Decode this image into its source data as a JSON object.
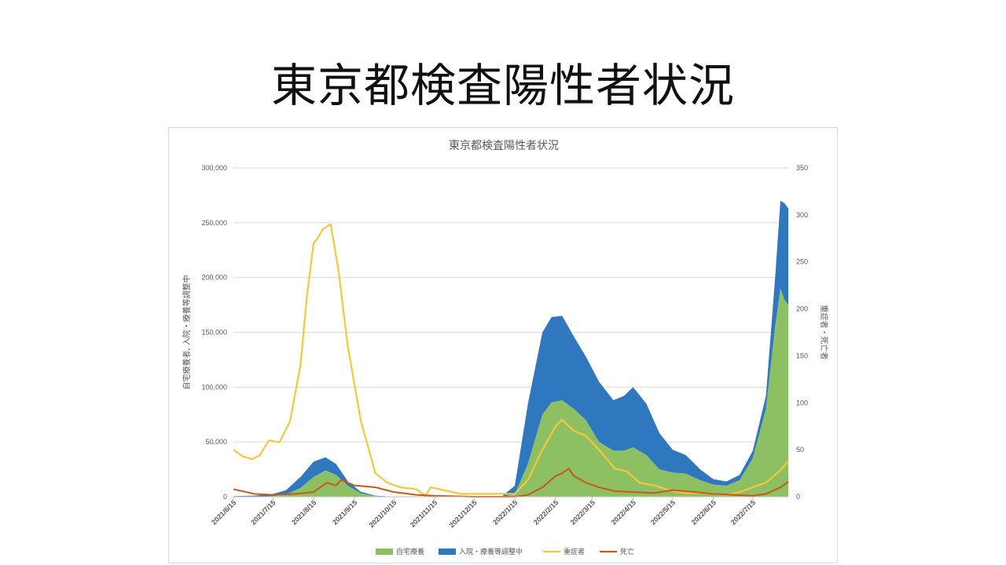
{
  "slide": {
    "title": "東京都検査陽性者状況"
  },
  "colors": {
    "home": "#8dc063",
    "hospital": "#2f78c0",
    "severe": "#f7c73a",
    "death": "#c9581a",
    "grid": "#d9d9d9",
    "text": "#595959"
  },
  "chart_data": {
    "type": "area",
    "title": "東京都検査陽性者状況",
    "ylabel_left": "自宅療養者, 入院・療養等調整中",
    "ylabel_right": "重症者・死亡者",
    "ylim_left": [
      0,
      300000
    ],
    "ylim_right": [
      0,
      350
    ],
    "yticks_left": [
      "0",
      "50,000",
      "100,000",
      "150,000",
      "200,000",
      "250,000",
      "300,000"
    ],
    "yticks_right": [
      "0",
      "50",
      "100",
      "150",
      "200",
      "250",
      "300",
      "350"
    ],
    "x_range": [
      "2021-06-15",
      "2022-08-11"
    ],
    "x_ticks": [
      "2021/6/15",
      "2021/7/15",
      "2021/8/15",
      "2021/9/15",
      "2021/10/15",
      "2021/11/15",
      "2021/12/15",
      "2022/1/15",
      "2022/2/15",
      "2022/3/15",
      "2022/4/15",
      "2022/5/15",
      "2022/6/15",
      "2022/7/15"
    ],
    "grid": true,
    "legend_position": "bottom",
    "series": [
      {
        "name": "自宅療養",
        "kind": "stacked-area",
        "axis": "left",
        "x": [
          "2021-06-15",
          "2021-07-01",
          "2021-07-15",
          "2021-07-25",
          "2021-08-05",
          "2021-08-15",
          "2021-08-24",
          "2021-09-01",
          "2021-09-10",
          "2021-09-20",
          "2021-10-01",
          "2021-10-15",
          "2021-11-15",
          "2021-12-15",
          "2022-01-05",
          "2022-01-15",
          "2022-01-25",
          "2022-02-05",
          "2022-02-12",
          "2022-02-20",
          "2022-03-01",
          "2022-03-10",
          "2022-03-20",
          "2022-03-31",
          "2022-04-08",
          "2022-04-15",
          "2022-04-25",
          "2022-05-05",
          "2022-05-15",
          "2022-05-25",
          "2022-06-05",
          "2022-06-15",
          "2022-06-25",
          "2022-07-05",
          "2022-07-15",
          "2022-07-25",
          "2022-08-01",
          "2022-08-05",
          "2022-08-08",
          "2022-08-11"
        ],
        "values": [
          0,
          0,
          500,
          2000,
          8000,
          18000,
          24000,
          20000,
          10000,
          3000,
          500,
          0,
          0,
          0,
          0,
          2000,
          30000,
          75000,
          86000,
          88000,
          80000,
          70000,
          50000,
          42000,
          42000,
          45000,
          38000,
          25000,
          22000,
          21000,
          15000,
          11000,
          10000,
          15000,
          35000,
          80000,
          155000,
          190000,
          180000,
          175000
        ]
      },
      {
        "name": "入院・療養等調整中",
        "kind": "stacked-area",
        "axis": "left",
        "x": [
          "2021-06-15",
          "2021-07-01",
          "2021-07-15",
          "2021-07-25",
          "2021-08-05",
          "2021-08-15",
          "2021-08-24",
          "2021-09-01",
          "2021-09-10",
          "2021-09-20",
          "2021-10-01",
          "2021-10-15",
          "2021-11-15",
          "2021-12-15",
          "2022-01-05",
          "2022-01-15",
          "2022-01-25",
          "2022-02-05",
          "2022-02-12",
          "2022-02-20",
          "2022-03-01",
          "2022-03-10",
          "2022-03-20",
          "2022-03-31",
          "2022-04-08",
          "2022-04-15",
          "2022-04-25",
          "2022-05-05",
          "2022-05-15",
          "2022-05-25",
          "2022-06-05",
          "2022-06-15",
          "2022-06-25",
          "2022-07-05",
          "2022-07-15",
          "2022-07-25",
          "2022-08-01",
          "2022-08-05",
          "2022-08-08",
          "2022-08-11"
        ],
        "values": [
          500,
          1000,
          2000,
          4000,
          10000,
          14000,
          12000,
          10000,
          4000,
          1500,
          500,
          0,
          0,
          0,
          200,
          8000,
          55000,
          75000,
          78000,
          77000,
          66000,
          58000,
          55000,
          46000,
          50000,
          55000,
          47000,
          33000,
          21000,
          17000,
          10000,
          5000,
          4000,
          5000,
          7000,
          12000,
          45000,
          80000,
          88000,
          88000
        ]
      },
      {
        "name": "重症者",
        "kind": "line",
        "axis": "right",
        "x": [
          "2021-06-15",
          "2021-06-22",
          "2021-06-29",
          "2021-07-05",
          "2021-07-12",
          "2021-07-20",
          "2021-07-28",
          "2021-08-05",
          "2021-08-10",
          "2021-08-15",
          "2021-08-18",
          "2021-08-22",
          "2021-08-28",
          "2021-09-03",
          "2021-09-10",
          "2021-09-20",
          "2021-10-01",
          "2021-10-10",
          "2021-10-20",
          "2021-11-01",
          "2021-11-08",
          "2021-11-12",
          "2021-11-22",
          "2021-12-05",
          "2021-12-20",
          "2022-01-05",
          "2022-01-15",
          "2022-01-25",
          "2022-02-05",
          "2022-02-15",
          "2022-02-20",
          "2022-03-01",
          "2022-03-10",
          "2022-03-20",
          "2022-04-01",
          "2022-04-10",
          "2022-04-20",
          "2022-05-01",
          "2022-05-15",
          "2022-05-25",
          "2022-06-05",
          "2022-06-15",
          "2022-06-25",
          "2022-07-05",
          "2022-07-15",
          "2022-07-25",
          "2022-08-05",
          "2022-08-11"
        ],
        "values": [
          50,
          43,
          40,
          44,
          60,
          58,
          80,
          140,
          215,
          270,
          275,
          285,
          290,
          240,
          160,
          80,
          25,
          15,
          10,
          8,
          1,
          10,
          7,
          3,
          3,
          3,
          3,
          18,
          50,
          75,
          82,
          70,
          65,
          50,
          30,
          27,
          15,
          12,
          6,
          4,
          4,
          3,
          2,
          5,
          10,
          15,
          28,
          38
        ]
      },
      {
        "name": "死亡",
        "kind": "line",
        "axis": "right",
        "x": [
          "2021-06-15",
          "2021-07-01",
          "2021-07-15",
          "2021-08-01",
          "2021-08-15",
          "2021-08-25",
          "2021-09-01",
          "2021-09-05",
          "2021-09-15",
          "2021-10-01",
          "2021-10-15",
          "2021-11-01",
          "2021-11-15",
          "2021-12-15",
          "2022-01-15",
          "2022-01-25",
          "2022-02-05",
          "2022-02-15",
          "2022-02-20",
          "2022-02-25",
          "2022-03-01",
          "2022-03-10",
          "2022-03-20",
          "2022-04-01",
          "2022-04-15",
          "2022-05-01",
          "2022-05-15",
          "2022-06-01",
          "2022-06-15",
          "2022-07-01",
          "2022-07-15",
          "2022-07-25",
          "2022-08-05",
          "2022-08-11"
        ],
        "values": [
          8,
          3,
          2,
          3,
          5,
          15,
          12,
          18,
          12,
          10,
          5,
          2,
          1,
          0,
          0,
          2,
          10,
          22,
          25,
          30,
          22,
          15,
          10,
          6,
          5,
          4,
          7,
          5,
          3,
          2,
          1,
          3,
          10,
          16
        ]
      }
    ]
  }
}
